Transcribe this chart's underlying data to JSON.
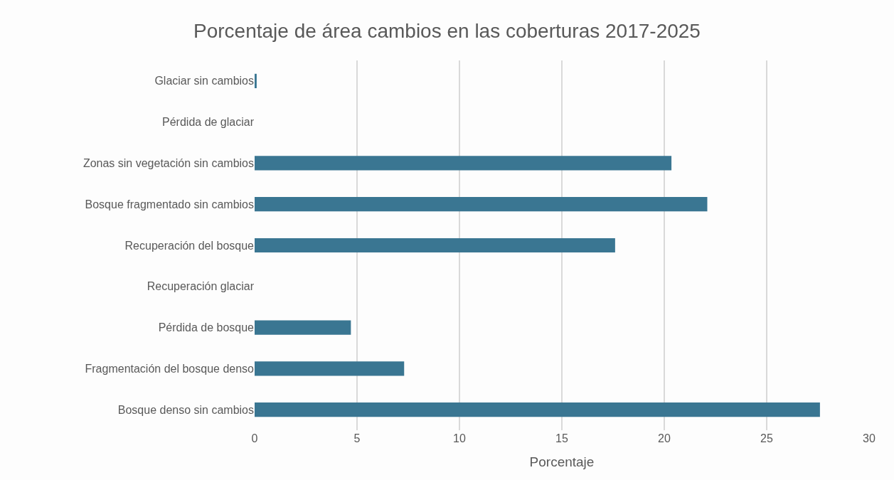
{
  "chart_data": {
    "type": "bar",
    "orientation": "horizontal",
    "title": "Porcentaje de área cambios en las coberturas 2017-2025",
    "xlabel": "Porcentaje",
    "categories": [
      "Glaciar sin cambios",
      "Pérdida de glaciar",
      "Zonas sin vegetación sin cambios",
      "Bosque fragmentado sin cambios",
      "Recuperación del bosque",
      "Recuperación glaciar",
      "Pérdida de bosque",
      "Fragmentación del bosque denso",
      "Bosque denso sin cambios"
    ],
    "values": [
      0.1,
      0,
      20.35,
      22.1,
      17.6,
      0,
      4.7,
      7.3,
      27.6
    ],
    "color": "#3a7692",
    "xlim": [
      0,
      30
    ],
    "xticks": [
      0,
      5,
      10,
      15,
      20,
      25,
      30
    ],
    "grid": "x"
  }
}
